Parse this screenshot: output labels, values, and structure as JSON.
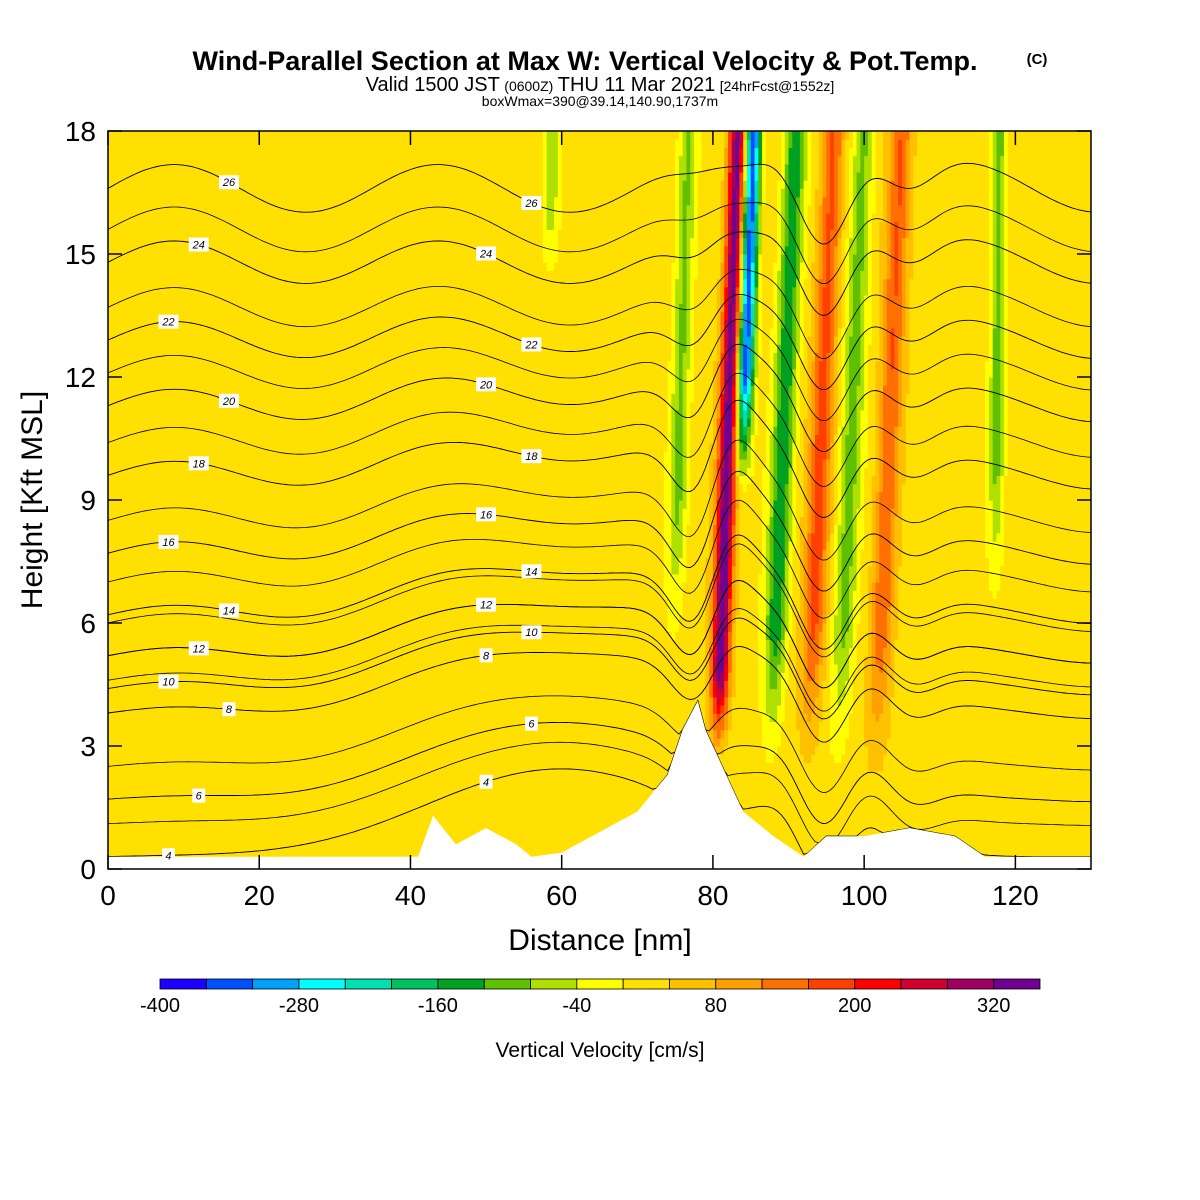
{
  "chart_data": {
    "type": "heatmap",
    "title": "Wind-Parallel Section at Max W: Vertical Velocity & Pot.Temp.",
    "title_mark": "(C)",
    "subtitle": {
      "valid_prefix": "Valid 1500 JST",
      "utc_time": "(0600Z)",
      "date": "THU 11 Mar 2021",
      "forecast": "[24hrFcst@1552z]"
    },
    "info_line": "boxWmax=390@39.14,140.90,1737m",
    "xlabel": "Distance [nm]",
    "ylabel": "Height [Kft MSL]",
    "xlim": [
      0,
      130
    ],
    "ylim": [
      0,
      18
    ],
    "x_ticks": [
      0,
      20,
      40,
      60,
      80,
      100,
      120
    ],
    "y_ticks": [
      0,
      3,
      6,
      9,
      12,
      15,
      18
    ],
    "colorbar": {
      "label": "Vertical Velocity [cm/s]",
      "bounds": [
        -400,
        -360,
        -320,
        -280,
        -240,
        -200,
        -160,
        -120,
        -80,
        -40,
        0,
        40,
        80,
        120,
        160,
        200,
        240,
        280,
        320,
        360
      ],
      "tick_labels": [
        "-400",
        "-280",
        "-160",
        "-40",
        "80",
        "200",
        "320"
      ],
      "colors": [
        "#1e00ff",
        "#0050ff",
        "#00a0ff",
        "#00ffff",
        "#00e0b0",
        "#00c060",
        "#00a020",
        "#60c000",
        "#b0e000",
        "#ffff00",
        "#ffe000",
        "#ffc000",
        "#ffa000",
        "#ff7000",
        "#ff4000",
        "#ff0000",
        "#d00030",
        "#a00060",
        "#700090"
      ]
    },
    "theta_contours": [
      {
        "value": 4,
        "h0": 0.3,
        "label": "4"
      },
      {
        "value": 6,
        "h0": 1.7,
        "label": "6"
      },
      {
        "value": 8,
        "h0": 3.8,
        "label": "8"
      },
      {
        "value": 10,
        "h0": 4.4,
        "label": "10"
      },
      {
        "value": 12,
        "h0": 5.2,
        "label": "12"
      },
      {
        "value": 14,
        "h0": 6.2,
        "label": "14"
      },
      {
        "value": 16,
        "h0": 7.7,
        "label": "16"
      },
      {
        "value": 18,
        "h0": 9.6,
        "label": "18"
      },
      {
        "value": 20,
        "h0": 11.3,
        "label": "20"
      },
      {
        "value": 22,
        "h0": 12.9,
        "label": "22"
      },
      {
        "value": 24,
        "h0": 14.8,
        "label": "24"
      },
      {
        "value": 26,
        "h0": 16.6,
        "label": "26"
      }
    ],
    "terrain": [
      {
        "x": 0,
        "h": 0.3
      },
      {
        "x": 41,
        "h": 0.3
      },
      {
        "x": 43,
        "h": 1.3
      },
      {
        "x": 46,
        "h": 0.6
      },
      {
        "x": 50,
        "h": 1.0
      },
      {
        "x": 54,
        "h": 0.6
      },
      {
        "x": 56,
        "h": 0.3
      },
      {
        "x": 60,
        "h": 0.4
      },
      {
        "x": 65,
        "h": 0.9
      },
      {
        "x": 70,
        "h": 1.4
      },
      {
        "x": 74,
        "h": 2.3
      },
      {
        "x": 76,
        "h": 3.4
      },
      {
        "x": 78,
        "h": 4.1
      },
      {
        "x": 79,
        "h": 3.4
      },
      {
        "x": 81,
        "h": 2.6
      },
      {
        "x": 84,
        "h": 1.4
      },
      {
        "x": 88,
        "h": 0.8
      },
      {
        "x": 92,
        "h": 0.3
      },
      {
        "x": 95,
        "h": 0.8
      },
      {
        "x": 100,
        "h": 0.8
      },
      {
        "x": 106,
        "h": 1.0
      },
      {
        "x": 112,
        "h": 0.8
      },
      {
        "x": 116,
        "h": 0.3
      },
      {
        "x": 130,
        "h": 0.3
      }
    ]
  }
}
